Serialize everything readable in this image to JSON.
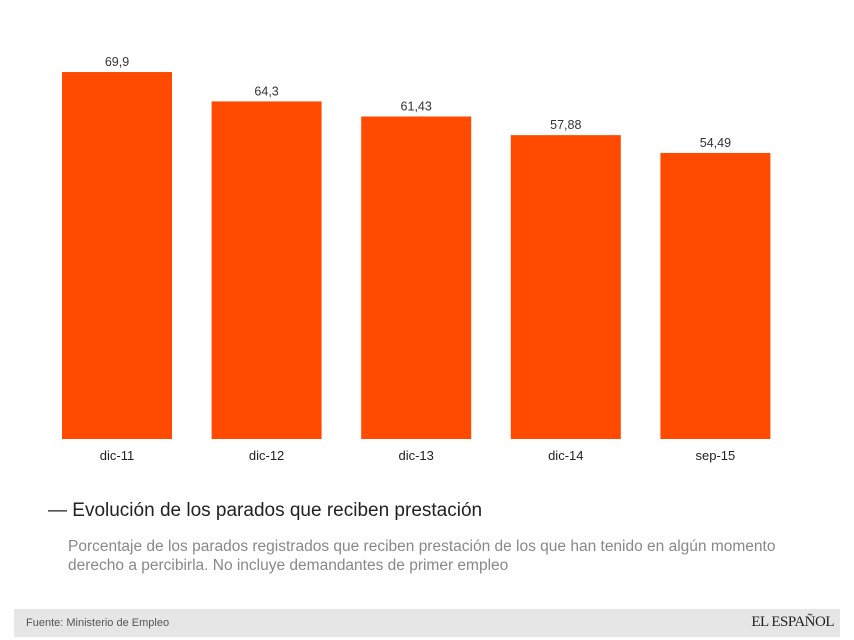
{
  "chart_data": {
    "type": "bar",
    "categories": [
      "dic-11",
      "dic-12",
      "dic-13",
      "dic-14",
      "sep-15"
    ],
    "values": [
      69.9,
      64.3,
      61.43,
      57.88,
      54.49
    ],
    "labels": [
      "69,9",
      "64,3",
      "61,43",
      "57,88",
      "54,49"
    ],
    "title": "Evolución de los parados que reciben prestación",
    "subtitle": "Porcentaje de los parados registrados que reciben prestación de los que han tenido en algún momento derecho a percibirla. No incluye demandantes de primer empleo",
    "xlabel": "",
    "ylabel": "",
    "ylim": [
      0,
      80
    ],
    "grid": false,
    "bar_color": "#ff4a00"
  },
  "footer": {
    "source": "Fuente: Ministerio de Empleo",
    "logo": "EL ESPAÑOL"
  }
}
